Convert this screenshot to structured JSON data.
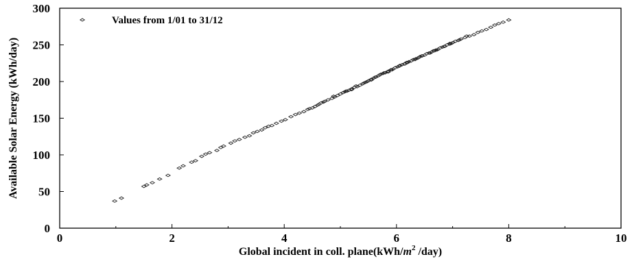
{
  "chart_data": {
    "type": "scatter",
    "xlabel": "Global incident in coll. plane(kWh/m² /day)",
    "ylabel": "Available Solar Energy (kWh/day)",
    "xlim": [
      0,
      10
    ],
    "ylim": [
      0,
      300
    ],
    "x_ticks": [
      "0",
      "2",
      "4",
      "6",
      "8",
      "10"
    ],
    "y_ticks": [
      "0",
      "50",
      "100",
      "150",
      "200",
      "250",
      "300"
    ],
    "grid": false,
    "legend_position": "top-left",
    "series": [
      {
        "name": "Values from 1/01 to 31/12",
        "marker": "diamond-open",
        "color": "#222222",
        "points": [
          [
            0.98,
            37
          ],
          [
            1.1,
            41
          ],
          [
            1.5,
            57
          ],
          [
            1.55,
            59
          ],
          [
            1.65,
            62
          ],
          [
            1.78,
            67
          ],
          [
            1.93,
            72
          ],
          [
            2.13,
            82
          ],
          [
            2.2,
            85
          ],
          [
            2.35,
            90
          ],
          [
            2.42,
            92
          ],
          [
            2.53,
            98
          ],
          [
            2.6,
            101
          ],
          [
            2.67,
            103
          ],
          [
            2.8,
            106
          ],
          [
            2.87,
            110
          ],
          [
            2.92,
            112
          ],
          [
            3.05,
            116
          ],
          [
            3.12,
            119
          ],
          [
            3.2,
            121
          ],
          [
            3.3,
            124
          ],
          [
            3.38,
            126
          ],
          [
            3.45,
            130
          ],
          [
            3.52,
            132
          ],
          [
            3.6,
            134
          ],
          [
            3.66,
            137
          ],
          [
            3.72,
            139
          ],
          [
            3.78,
            140
          ],
          [
            3.86,
            143
          ],
          [
            3.95,
            146
          ],
          [
            4.02,
            148
          ],
          [
            4.12,
            152
          ],
          [
            4.2,
            155
          ],
          [
            4.27,
            157
          ],
          [
            4.35,
            159
          ],
          [
            4.42,
            162
          ],
          [
            4.5,
            164
          ],
          [
            4.55,
            166
          ],
          [
            4.6,
            168
          ],
          [
            4.66,
            171
          ],
          [
            4.72,
            173
          ],
          [
            4.78,
            175
          ],
          [
            4.85,
            177
          ],
          [
            4.9,
            179
          ],
          [
            4.95,
            181
          ],
          [
            5.0,
            183
          ],
          [
            5.05,
            185
          ],
          [
            5.1,
            187
          ],
          [
            5.15,
            188
          ],
          [
            5.2,
            190
          ],
          [
            5.25,
            192
          ],
          [
            5.3,
            193
          ],
          [
            5.35,
            195
          ],
          [
            5.4,
            197
          ],
          [
            5.45,
            199
          ],
          [
            5.5,
            201
          ],
          [
            5.55,
            203
          ],
          [
            5.6,
            205
          ],
          [
            5.63,
            206
          ],
          [
            5.68,
            208
          ],
          [
            5.72,
            210
          ],
          [
            5.76,
            211
          ],
          [
            5.8,
            212
          ],
          [
            5.85,
            214
          ],
          [
            5.9,
            216
          ],
          [
            5.94,
            217
          ],
          [
            5.98,
            219
          ],
          [
            6.02,
            220
          ],
          [
            6.06,
            222
          ],
          [
            6.1,
            223
          ],
          [
            6.14,
            224
          ],
          [
            6.18,
            226
          ],
          [
            6.22,
            227
          ],
          [
            6.26,
            228
          ],
          [
            6.3,
            230
          ],
          [
            6.34,
            231
          ],
          [
            6.38,
            232
          ],
          [
            6.42,
            234
          ],
          [
            6.46,
            235
          ],
          [
            6.5,
            236
          ],
          [
            6.54,
            238
          ],
          [
            6.58,
            239
          ],
          [
            6.62,
            240
          ],
          [
            6.66,
            242
          ],
          [
            6.7,
            243
          ],
          [
            6.74,
            244
          ],
          [
            6.78,
            246
          ],
          [
            6.82,
            247
          ],
          [
            6.86,
            248
          ],
          [
            6.9,
            250
          ],
          [
            6.95,
            251
          ],
          [
            7.0,
            253
          ],
          [
            7.05,
            255
          ],
          [
            7.1,
            256
          ],
          [
            7.15,
            258
          ],
          [
            7.22,
            260
          ],
          [
            7.3,
            262
          ],
          [
            7.38,
            264
          ],
          [
            7.45,
            267
          ],
          [
            7.52,
            269
          ],
          [
            7.6,
            271
          ],
          [
            7.68,
            274
          ],
          [
            7.75,
            277
          ],
          [
            7.82,
            279
          ],
          [
            7.9,
            281
          ],
          [
            8.0,
            284
          ],
          [
            4.7,
            172
          ],
          [
            4.88,
            180
          ],
          [
            5.08,
            186
          ],
          [
            5.28,
            194
          ],
          [
            5.48,
            200
          ],
          [
            5.62,
            206
          ],
          [
            5.78,
            212
          ],
          [
            5.92,
            216
          ],
          [
            6.05,
            221
          ],
          [
            6.2,
            226
          ],
          [
            6.33,
            230
          ],
          [
            6.45,
            235
          ],
          [
            6.6,
            239
          ],
          [
            6.72,
            243
          ],
          [
            6.85,
            248
          ],
          [
            6.98,
            252
          ],
          [
            7.12,
            257
          ],
          [
            7.25,
            262
          ],
          [
            5.2,
            189
          ],
          [
            5.55,
            202
          ],
          [
            5.85,
            213
          ],
          [
            6.15,
            224
          ],
          [
            6.4,
            233
          ],
          [
            6.68,
            242
          ],
          [
            6.95,
            252
          ],
          [
            4.45,
            163
          ],
          [
            4.62,
            169
          ],
          [
            5.12,
            187
          ],
          [
            5.42,
            198
          ],
          [
            5.7,
            209
          ]
        ]
      }
    ]
  }
}
